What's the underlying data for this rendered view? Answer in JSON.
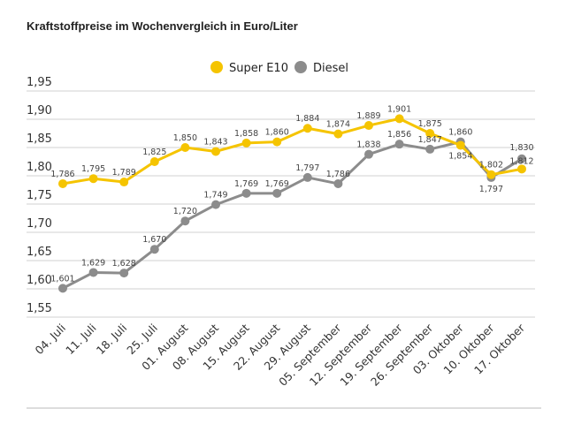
{
  "chart_data": {
    "type": "line",
    "title": "Kraftstoffpreise im Wochenvergleich in Euro/Liter",
    "categories": [
      "04. Juli",
      "11. Juli",
      "18. Juli",
      "25. Juli",
      "01. August",
      "08. August",
      "15. August",
      "22. August",
      "29. August",
      "05. September",
      "12. September",
      "19. September",
      "26. September",
      "03. Oktober",
      "10. Oktober",
      "17. Oktober"
    ],
    "series": [
      {
        "name": "Super E10",
        "color": "#f5c400",
        "values": [
          1.786,
          1.795,
          1.789,
          1.825,
          1.85,
          1.843,
          1.858,
          1.86,
          1.884,
          1.874,
          1.889,
          1.901,
          1.875,
          1.854,
          1.802,
          1.812
        ],
        "labels": [
          "1,786",
          "1,795",
          "1,789",
          "1,825",
          "1,850",
          "1,843",
          "1,858",
          "1,860",
          "1,884",
          "1,874",
          "1,889",
          "1,901",
          "1,875",
          "1,854",
          "1,802",
          "1,812"
        ]
      },
      {
        "name": "Diesel",
        "color": "#8c8c8c",
        "values": [
          1.601,
          1.629,
          1.628,
          1.67,
          1.72,
          1.749,
          1.769,
          1.769,
          1.797,
          1.786,
          1.838,
          1.856,
          1.847,
          1.86,
          1.797,
          1.83
        ],
        "labels": [
          "1,601",
          "1,629",
          "1,628",
          "1,670",
          "1,720",
          "1,749",
          "1,769",
          "1,769",
          "1,797",
          "1,786",
          "1,838",
          "1,856",
          "1,847",
          "1,860",
          "1,797",
          "1,830"
        ]
      }
    ],
    "ylim": [
      1.55,
      1.95
    ],
    "yticks": [
      "1,55",
      "1,60",
      "1,65",
      "1,70",
      "1,75",
      "1,80",
      "1,85",
      "1,90",
      "1,95"
    ],
    "grid": true,
    "legend": "top-center"
  }
}
